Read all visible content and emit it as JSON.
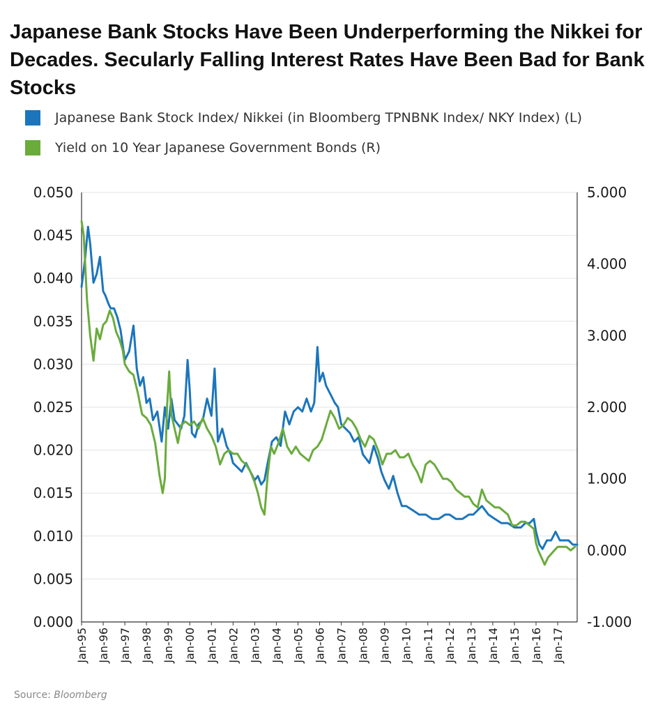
{
  "chart_data": {
    "type": "line",
    "title": "Japanese Bank Stocks Have Been Underperforming the Nikkei for Decades. Secularly Falling Interest Rates Have Been Bad for Bank Stocks",
    "source_label": "Source:",
    "source_name": "Bloomberg",
    "legend_position": "top-left",
    "grid": true,
    "y_left": {
      "range": [
        0,
        0.05
      ],
      "ticks": [
        "0.000",
        "0.005",
        "0.010",
        "0.015",
        "0.020",
        "0.025",
        "0.030",
        "0.035",
        "0.040",
        "0.045",
        "0.050"
      ]
    },
    "y_right": {
      "range": [
        -1,
        5
      ],
      "ticks": [
        "-1.000",
        "0.000",
        "1.000",
        "2.000",
        "3.000",
        "4.000",
        "5.000"
      ]
    },
    "x": {
      "range": [
        1995.0,
        2017.9
      ],
      "tick_labels": [
        "Jan-95",
        "Jan-96",
        "Jan-97",
        "Jan-98",
        "Jan-99",
        "Jan-00",
        "Jan-01",
        "Jan-02",
        "Jan-03",
        "Jan-04",
        "Jan-05",
        "Jan-06",
        "Jan-07",
        "Jan-08",
        "Jan-09",
        "Jan-10",
        "Jan-11",
        "Jan-12",
        "Jan-13",
        "Jan-14",
        "Jan-15",
        "Jan-16",
        "Jan-17"
      ]
    },
    "series": [
      {
        "name": "Japanese Bank Stock Index/ Nikkei (in Bloomberg TPNBNK Index/ NKY Index) (L)",
        "axis": "left",
        "color": "#1b75bc",
        "x": [
          1995.0,
          1995.15,
          1995.3,
          1995.4,
          1995.55,
          1995.7,
          1995.85,
          1996.0,
          1996.1,
          1996.25,
          1996.35,
          1996.5,
          1996.65,
          1996.8,
          1997.0,
          1997.2,
          1997.4,
          1997.55,
          1997.7,
          1997.85,
          1998.0,
          1998.15,
          1998.3,
          1998.5,
          1998.7,
          1998.85,
          1999.0,
          1999.15,
          1999.3,
          1999.45,
          1999.6,
          1999.75,
          1999.9,
          2000.0,
          2000.1,
          2000.25,
          2000.4,
          2000.6,
          2000.8,
          2001.0,
          2001.15,
          2001.3,
          2001.5,
          2001.7,
          2001.9,
          2002.0,
          2002.2,
          2002.4,
          2002.6,
          2002.8,
          2003.0,
          2003.15,
          2003.3,
          2003.45,
          2003.6,
          2003.8,
          2004.0,
          2004.2,
          2004.4,
          2004.6,
          2004.8,
          2005.0,
          2005.2,
          2005.4,
          2005.6,
          2005.75,
          2005.9,
          2006.0,
          2006.15,
          2006.3,
          2006.5,
          2006.7,
          2006.85,
          2007.0,
          2007.2,
          2007.4,
          2007.6,
          2007.8,
          2008.0,
          2008.15,
          2008.3,
          2008.5,
          2008.7,
          2008.85,
          2009.0,
          2009.2,
          2009.4,
          2009.6,
          2009.8,
          2010.0,
          2010.3,
          2010.6,
          2010.9,
          2011.2,
          2011.5,
          2011.8,
          2012.0,
          2012.3,
          2012.6,
          2012.9,
          2013.1,
          2013.3,
          2013.5,
          2013.8,
          2014.1,
          2014.4,
          2014.7,
          2015.0,
          2015.3,
          2015.5,
          2015.7,
          2015.9,
          2016.0,
          2016.15,
          2016.3,
          2016.5,
          2016.7,
          2016.9,
          2017.1,
          2017.3,
          2017.5,
          2017.7,
          2017.9
        ],
        "values": [
          0.039,
          0.042,
          0.046,
          0.044,
          0.0395,
          0.0405,
          0.0425,
          0.0385,
          0.038,
          0.037,
          0.0365,
          0.0365,
          0.0355,
          0.034,
          0.0305,
          0.0315,
          0.0345,
          0.0295,
          0.0275,
          0.0285,
          0.0255,
          0.026,
          0.0235,
          0.0245,
          0.021,
          0.025,
          0.0225,
          0.026,
          0.0235,
          0.023,
          0.0225,
          0.024,
          0.0305,
          0.027,
          0.022,
          0.0215,
          0.023,
          0.0235,
          0.026,
          0.024,
          0.0295,
          0.021,
          0.0225,
          0.0205,
          0.0195,
          0.0185,
          0.018,
          0.0175,
          0.0185,
          0.0175,
          0.0165,
          0.017,
          0.016,
          0.0165,
          0.0185,
          0.021,
          0.0215,
          0.0205,
          0.0245,
          0.023,
          0.0245,
          0.025,
          0.0245,
          0.026,
          0.0245,
          0.0255,
          0.032,
          0.028,
          0.029,
          0.0275,
          0.0265,
          0.0255,
          0.025,
          0.023,
          0.0225,
          0.022,
          0.021,
          0.0215,
          0.0195,
          0.019,
          0.0185,
          0.0205,
          0.019,
          0.0175,
          0.0165,
          0.0155,
          0.017,
          0.015,
          0.0135,
          0.0135,
          0.013,
          0.0125,
          0.0125,
          0.012,
          0.012,
          0.0125,
          0.0125,
          0.012,
          0.012,
          0.0125,
          0.0125,
          0.013,
          0.0135,
          0.0125,
          0.012,
          0.0115,
          0.0115,
          0.011,
          0.011,
          0.0115,
          0.0115,
          0.012,
          0.0105,
          0.009,
          0.0085,
          0.0095,
          0.0095,
          0.0105,
          0.0095,
          0.0095,
          0.0095,
          0.009,
          0.009
        ]
      },
      {
        "name": "Yield on 10 Year Japanese Government Bonds (R)",
        "axis": "right",
        "color": "#6aab3c",
        "x": [
          1995.0,
          1995.1,
          1995.25,
          1995.4,
          1995.55,
          1995.7,
          1995.85,
          1996.0,
          1996.15,
          1996.3,
          1996.45,
          1996.6,
          1996.75,
          1996.9,
          1997.0,
          1997.2,
          1997.4,
          1997.6,
          1997.8,
          1998.0,
          1998.2,
          1998.4,
          1998.6,
          1998.75,
          1998.85,
          1998.95,
          1999.05,
          1999.15,
          1999.3,
          1999.45,
          1999.6,
          1999.8,
          2000.0,
          2000.2,
          2000.4,
          2000.6,
          2000.8,
          2001.0,
          2001.2,
          2001.4,
          2001.6,
          2001.8,
          2002.0,
          2002.2,
          2002.4,
          2002.6,
          2002.8,
          2003.0,
          2003.15,
          2003.3,
          2003.45,
          2003.6,
          2003.75,
          2003.9,
          2004.1,
          2004.3,
          2004.5,
          2004.7,
          2004.9,
          2005.1,
          2005.3,
          2005.5,
          2005.7,
          2005.9,
          2006.1,
          2006.3,
          2006.5,
          2006.7,
          2006.9,
          2007.1,
          2007.3,
          2007.5,
          2007.7,
          2007.9,
          2008.1,
          2008.3,
          2008.5,
          2008.7,
          2008.9,
          2009.1,
          2009.3,
          2009.5,
          2009.7,
          2009.9,
          2010.1,
          2010.3,
          2010.5,
          2010.7,
          2010.9,
          2011.1,
          2011.3,
          2011.5,
          2011.7,
          2011.9,
          2012.1,
          2012.3,
          2012.5,
          2012.7,
          2012.9,
          2013.1,
          2013.3,
          2013.5,
          2013.7,
          2013.9,
          2014.1,
          2014.3,
          2014.5,
          2014.7,
          2014.9,
          2015.1,
          2015.3,
          2015.5,
          2015.7,
          2015.9,
          2016.0,
          2016.1,
          2016.25,
          2016.4,
          2016.55,
          2016.7,
          2016.85,
          2017.0,
          2017.2,
          2017.4,
          2017.6,
          2017.8
        ],
        "values": [
          4.6,
          4.4,
          3.5,
          3.0,
          2.65,
          3.1,
          2.95,
          3.15,
          3.2,
          3.35,
          3.25,
          3.05,
          2.95,
          2.8,
          2.6,
          2.5,
          2.45,
          2.2,
          1.9,
          1.85,
          1.75,
          1.5,
          1.05,
          0.8,
          1.0,
          2.0,
          2.5,
          1.9,
          1.7,
          1.5,
          1.75,
          1.8,
          1.75,
          1.8,
          1.7,
          1.85,
          1.7,
          1.6,
          1.45,
          1.2,
          1.35,
          1.4,
          1.35,
          1.35,
          1.25,
          1.2,
          1.1,
          0.95,
          0.8,
          0.6,
          0.5,
          1.05,
          1.45,
          1.35,
          1.5,
          1.7,
          1.45,
          1.35,
          1.45,
          1.35,
          1.3,
          1.25,
          1.4,
          1.45,
          1.55,
          1.75,
          1.95,
          1.85,
          1.7,
          1.75,
          1.85,
          1.8,
          1.7,
          1.55,
          1.45,
          1.6,
          1.55,
          1.4,
          1.2,
          1.35,
          1.35,
          1.4,
          1.3,
          1.3,
          1.35,
          1.2,
          1.1,
          0.95,
          1.2,
          1.25,
          1.2,
          1.1,
          1.0,
          1.0,
          0.95,
          0.85,
          0.8,
          0.75,
          0.75,
          0.65,
          0.6,
          0.85,
          0.7,
          0.65,
          0.6,
          0.6,
          0.55,
          0.5,
          0.35,
          0.35,
          0.4,
          0.4,
          0.35,
          0.3,
          0.1,
          0.0,
          -0.1,
          -0.2,
          -0.1,
          -0.05,
          0.0,
          0.05,
          0.05,
          0.05,
          0.0,
          0.05
        ]
      }
    ]
  },
  "colors": {
    "bank_series": "#1b75bc",
    "jgb_series": "#6aab3c",
    "grid": "#e3e3e3",
    "axis": "#333333"
  }
}
